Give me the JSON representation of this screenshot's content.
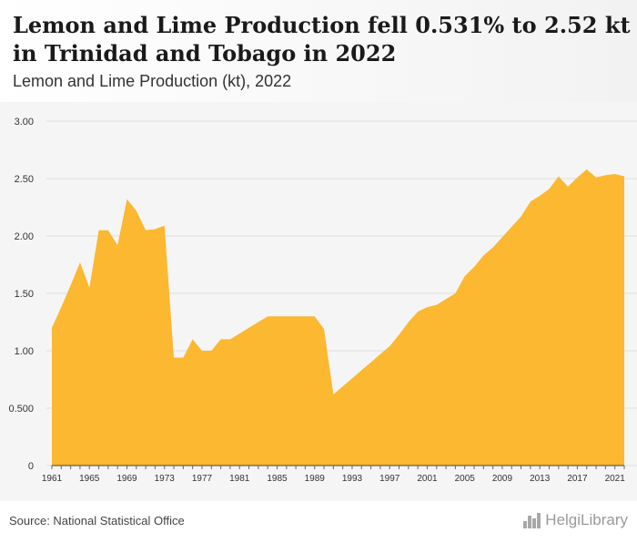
{
  "header": {
    "title": "Lemon and Lime Production fell 0.531% to 2.52 kt in Trinidad and Tobago in 2022",
    "subtitle": "Lemon and Lime Production (kt), 2022"
  },
  "footer": {
    "source": "Source: National Statistical Office",
    "logo_text": "HelgiLibrary"
  },
  "colors": {
    "area": "#fbb830",
    "grid": "#e0e0e0",
    "header_bg": "#f2f2f2"
  },
  "chart_data": {
    "type": "area",
    "title": "",
    "xlabel": "",
    "ylabel": "",
    "ylim": [
      0,
      3.0
    ],
    "xlim": [
      1961,
      2022
    ],
    "grid": true,
    "legend": "none",
    "x_ticks": [
      "1961",
      "1965",
      "1969",
      "1973",
      "1977",
      "1981",
      "1985",
      "1989",
      "1993",
      "1997",
      "2001",
      "2005",
      "2009",
      "2013",
      "2017",
      "2021"
    ],
    "y_ticks": [
      {
        "value": 0,
        "label": "0"
      },
      {
        "value": 0.5,
        "label": "0.500"
      },
      {
        "value": 1.0,
        "label": "1.00"
      },
      {
        "value": 1.5,
        "label": "1.50"
      },
      {
        "value": 2.0,
        "label": "2.00"
      },
      {
        "value": 2.5,
        "label": "2.50"
      },
      {
        "value": 3.0,
        "label": "3.00"
      }
    ],
    "series": [
      {
        "x": [
          1961,
          1962,
          1963,
          1964,
          1965,
          1966,
          1967,
          1968,
          1969,
          1970,
          1971,
          1972,
          1973,
          1974,
          1975,
          1976,
          1977,
          1978,
          1979,
          1980,
          1981,
          1982,
          1983,
          1984,
          1985,
          1986,
          1987,
          1988,
          1989,
          1990,
          1991,
          1992,
          1993,
          1994,
          1995,
          1996,
          1997,
          1998,
          1999,
          2000,
          2001,
          2002,
          2003,
          2004,
          2005,
          2006,
          2007,
          2008,
          2009,
          2010,
          2011,
          2012,
          2013,
          2014,
          2015,
          2016,
          2017,
          2018,
          2019,
          2020,
          2021,
          2022
        ],
        "values": [
          1.2,
          1.38,
          1.57,
          1.77,
          1.55,
          2.05,
          2.05,
          1.92,
          2.32,
          2.22,
          2.05,
          2.06,
          2.09,
          0.94,
          0.94,
          1.1,
          1.0,
          1.0,
          1.1,
          1.1,
          1.15,
          1.2,
          1.25,
          1.3,
          1.3,
          1.3,
          1.3,
          1.3,
          1.3,
          1.19,
          0.62,
          0.69,
          0.76,
          0.83,
          0.9,
          0.97,
          1.04,
          1.14,
          1.25,
          1.34,
          1.38,
          1.4,
          1.45,
          1.5,
          1.65,
          1.73,
          1.83,
          1.9,
          1.99,
          2.08,
          2.17,
          2.3,
          2.35,
          2.41,
          2.52,
          2.43,
          2.51,
          2.58,
          2.51,
          2.53,
          2.54,
          2.52
        ]
      }
    ]
  }
}
